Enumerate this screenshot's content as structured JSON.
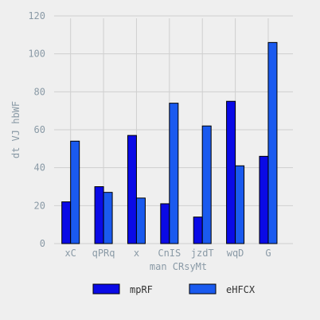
{
  "chart_data": {
    "type": "bar",
    "categories": [
      "xC",
      "qPRq",
      "x",
      "CnIS",
      "jzdT",
      "wqD",
      "G"
    ],
    "series": [
      {
        "name": "mpRF",
        "values": [
          22,
          30,
          57,
          21,
          14,
          75,
          46
        ],
        "color": "#0a0ae6"
      },
      {
        "name": "eHFCX",
        "values": [
          54,
          27,
          24,
          74,
          62,
          41,
          106
        ],
        "color": "#1a5aef"
      }
    ],
    "xlabel": "man CRsyMt",
    "ylabel": "dt  VJ hbWF",
    "ylim": [
      0,
      120
    ],
    "yticks": [
      0,
      20,
      40,
      60,
      80,
      100,
      120
    ],
    "grid": true,
    "legend_position": "bottom"
  }
}
